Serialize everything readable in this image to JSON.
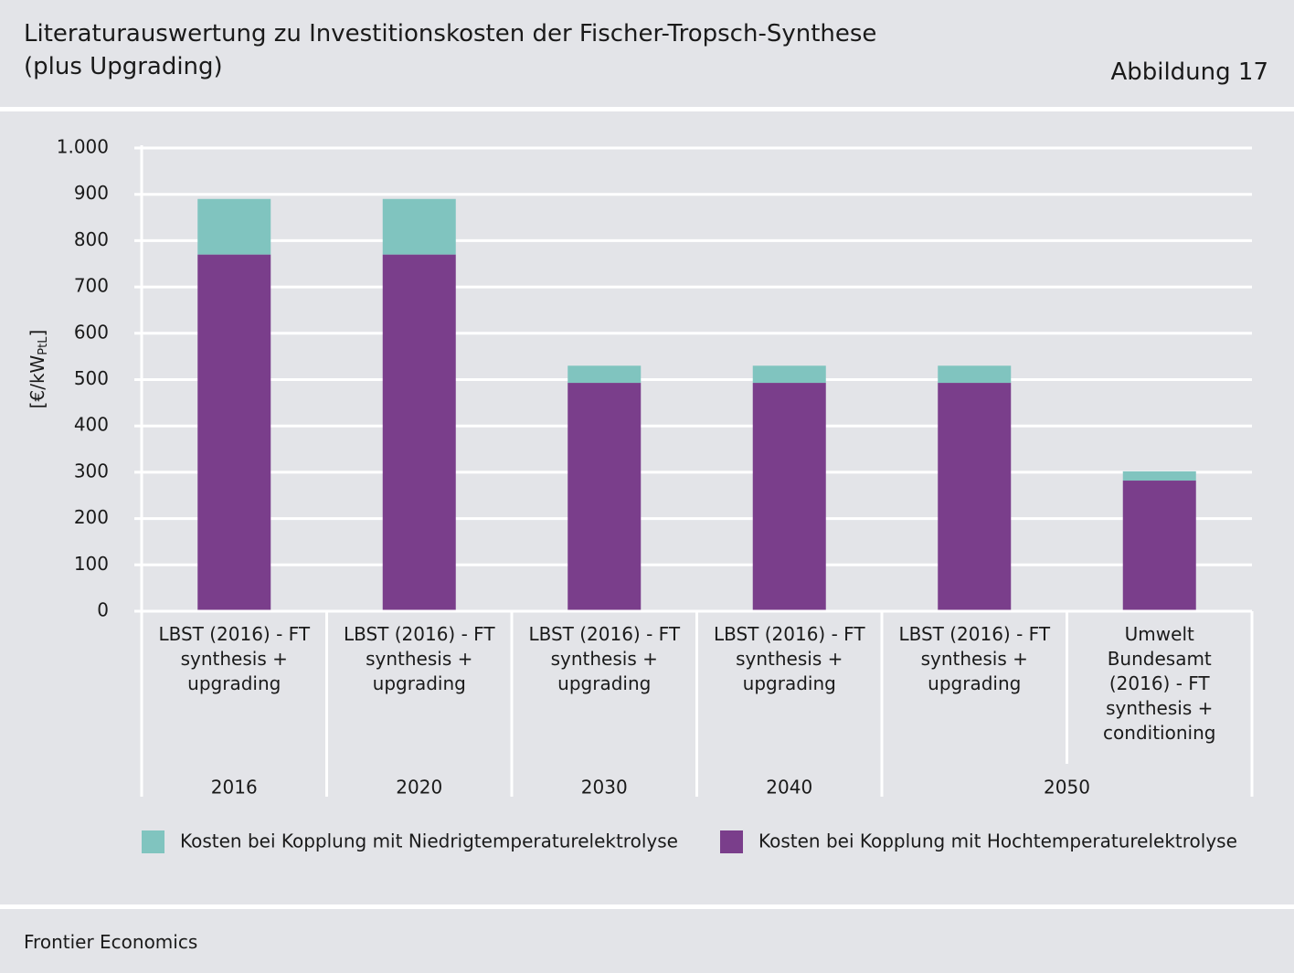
{
  "header": {
    "title": "Literaturauswertung zu Investitionskosten der Fischer-Tropsch-Synthese",
    "title2": "(plus Upgrading)",
    "figure": "Abbildung 17"
  },
  "chart_data": {
    "type": "stacked-bar",
    "ylabel": {
      "main": "[€/kW",
      "sub": "PtL",
      "close": "]"
    },
    "categories": [
      "LBST (2016) - FT\nsynthesis +\nupgrading",
      "LBST (2016) - FT\nsynthesis +\nupgrading",
      "LBST (2016) - FT\nsynthesis +\nupgrading",
      "LBST (2016) - FT\nsynthesis +\nupgrading",
      "LBST (2016) - FT\nsynthesis +\nupgrading",
      "Umwelt\nBundesamt\n(2016) - FT\nsynthesis +\nconditioning"
    ],
    "groups": [
      {
        "label": "2016",
        "count": 1
      },
      {
        "label": "2020",
        "count": 1
      },
      {
        "label": "2030",
        "count": 1
      },
      {
        "label": "2040",
        "count": 1
      },
      {
        "label": "2050",
        "count": 2
      }
    ],
    "series": [
      {
        "name": "Kosten bei Kopplung mit Niedrigtemperaturelektrolyse",
        "color": "#80c4bf",
        "values": [
          120,
          120,
          37,
          37,
          37,
          20
        ]
      },
      {
        "name": "Kosten bei Kopplung mit Hochtemperaturelektrolyse",
        "color": "#7a3e8b",
        "values": [
          770,
          770,
          493,
          493,
          493,
          282
        ]
      }
    ],
    "ylim": [
      0,
      1000
    ],
    "yticks": [
      0,
      100,
      200,
      300,
      400,
      500,
      600,
      700,
      800,
      900,
      {
        "value": 1000,
        "label": "1.000"
      }
    ],
    "grid": true
  },
  "footer": {
    "source": "Frontier Economics"
  }
}
